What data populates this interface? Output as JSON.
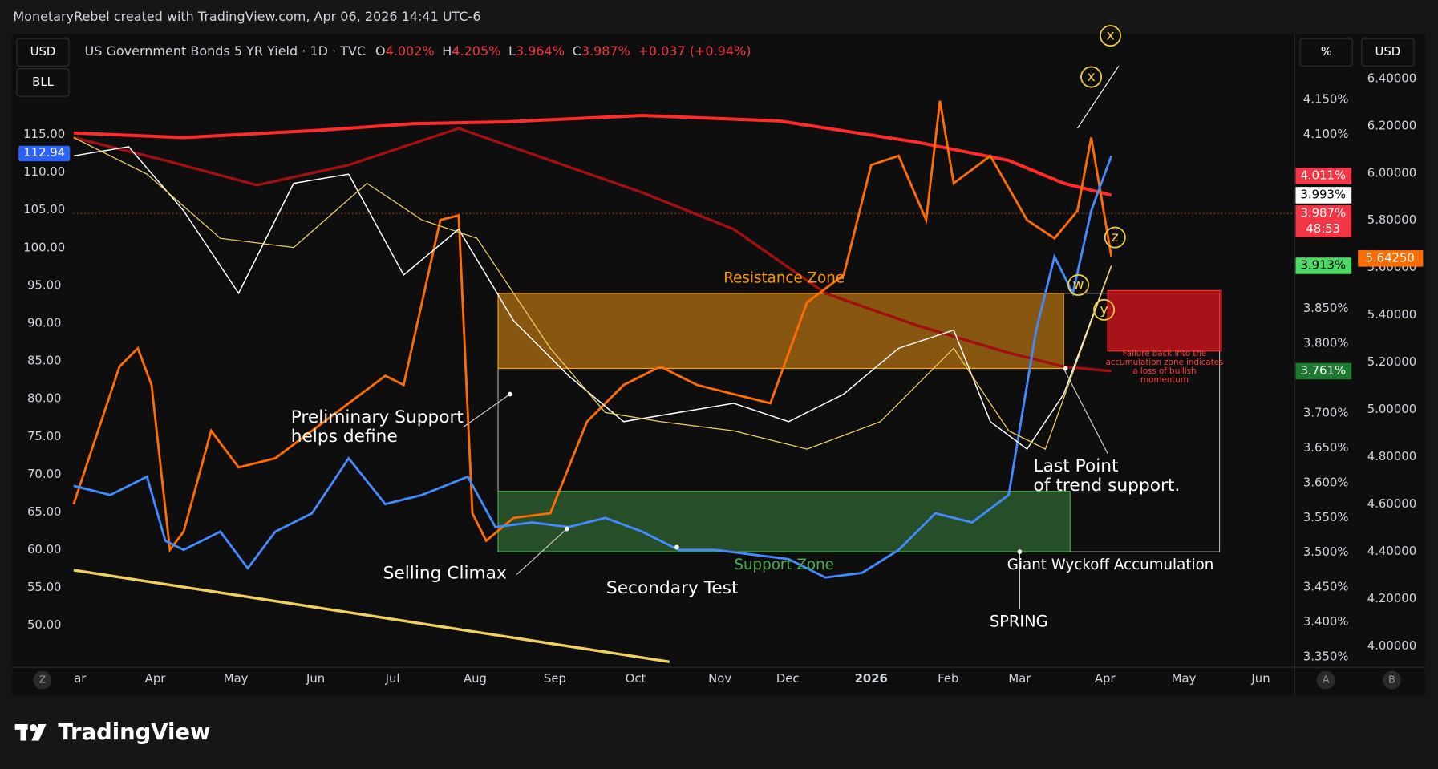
{
  "header": "MonetaryRebel created with TradingView.com, Apr 06, 2026 14:41 UTC-6",
  "legend": {
    "symbol": "US Government Bonds 5 YR Yield · 1D · TVC",
    "o_label": "O",
    "o": "4.002%",
    "h_label": "H",
    "h": "4.205%",
    "l_label": "L",
    "l": "3.964%",
    "c_label": "C",
    "c": "3.987%",
    "change": "+0.037 (+0.94%)"
  },
  "buttons_left": [
    "USD",
    "BLL"
  ],
  "buttons_right": [
    "%",
    "USD"
  ],
  "left_axis": [
    "115.00",
    "110.00",
    "105.00",
    "100.00",
    "95.00",
    "90.00",
    "85.00",
    "80.00",
    "75.00",
    "70.00",
    "65.00",
    "60.00",
    "55.00",
    "50.00"
  ],
  "left_badge": "112.94",
  "mid_axis": [
    "4.150%",
    "4.100%",
    "3.850%",
    "3.800%",
    "3.700%",
    "3.650%",
    "3.600%",
    "3.550%",
    "3.500%",
    "3.450%",
    "3.400%",
    "3.350%"
  ],
  "mid_badges": [
    "4.011%",
    "3.993%",
    "3.987%",
    "48:53",
    "3.913%",
    "3.761%"
  ],
  "right_axis": [
    "6.40000",
    "6.20000",
    "6.00000",
    "5.80000",
    "5.60000",
    "5.40000",
    "5.20000",
    "5.00000",
    "4.80000",
    "4.60000",
    "4.40000",
    "4.20000",
    "4.00000"
  ],
  "right_badge": "5.64250",
  "x_axis": [
    "ar",
    "Apr",
    "May",
    "Jun",
    "Jul",
    "Aug",
    "Sep",
    "Oct",
    "Nov",
    "Dec",
    "2026",
    "Feb",
    "Mar",
    "Apr",
    "May",
    "Jun"
  ],
  "annotations": {
    "resistance": "Resistance Zone",
    "support": "Support Zone",
    "preliminary": [
      "Preliminary Support",
      "helps define"
    ],
    "climax": "Selling Climax",
    "secondary": "Secondary Test",
    "last_point": [
      "Last Point",
      "of trend support."
    ],
    "wyckoff": "Giant Wyckoff Accumulation",
    "spring": "SPRING",
    "failure": [
      "Failure back into the",
      "accumulation zone indicates",
      "a loss of bullish",
      "momentum"
    ],
    "waves": [
      "x",
      "x",
      "z",
      "w",
      "y"
    ]
  },
  "bottom_buttons": [
    "Z",
    "A",
    "B"
  ],
  "brand": "TradingView"
}
